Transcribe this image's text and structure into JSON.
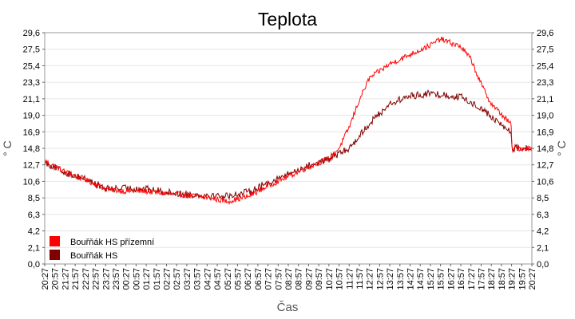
{
  "chart_data": {
    "type": "line",
    "title": "Teplota",
    "xlabel": "Čas",
    "ylabel": "° C",
    "ylim": [
      0,
      29.6
    ],
    "y_ticks": [
      "0,0",
      "2,1",
      "4,2",
      "6,3",
      "8,5",
      "10,6",
      "12,7",
      "14,8",
      "16,9",
      "19,0",
      "21,1",
      "23,3",
      "25,4",
      "27,5",
      "29,6"
    ],
    "x_ticks": [
      "20:27",
      "20:57",
      "21:27",
      "21:57",
      "22:27",
      "22:57",
      "23:27",
      "23:57",
      "00:27",
      "00:57",
      "01:27",
      "01:57",
      "02:27",
      "02:57",
      "03:27",
      "03:57",
      "04:27",
      "04:57",
      "05:27",
      "05:57",
      "06:27",
      "06:57",
      "07:27",
      "07:57",
      "08:27",
      "08:57",
      "09:27",
      "09:57",
      "10:27",
      "10:57",
      "11:27",
      "11:57",
      "12:27",
      "12:57",
      "13:27",
      "13:57",
      "14:27",
      "14:57",
      "15:27",
      "15:57",
      "16:27",
      "16:57",
      "17:27",
      "17:57",
      "18:27",
      "18:57",
      "19:27",
      "19:57",
      "20:27"
    ],
    "grid": true,
    "legend_position": "bottom-left",
    "series": [
      {
        "name": "Bouřňák HS přízemní",
        "color": "#ff0000",
        "x": [
          "20:27",
          "21:27",
          "22:27",
          "23:27",
          "00:27",
          "01:27",
          "02:27",
          "03:27",
          "04:27",
          "05:27",
          "06:27",
          "07:27",
          "08:27",
          "09:27",
          "10:27",
          "10:57",
          "11:27",
          "11:57",
          "12:27",
          "13:27",
          "14:27",
          "15:27",
          "15:57",
          "16:27",
          "16:57",
          "17:27",
          "17:57",
          "18:27",
          "19:27",
          "20:27"
        ],
        "values": [
          13.2,
          11.8,
          10.8,
          9.6,
          9.3,
          9.3,
          9.0,
          8.8,
          8.5,
          8.0,
          8.6,
          10.0,
          11.2,
          12.4,
          13.5,
          14.8,
          17.5,
          21.0,
          23.8,
          25.6,
          26.8,
          28.0,
          28.8,
          28.3,
          27.8,
          26.2,
          23.0,
          20.5,
          17.8,
          14.8
        ]
      },
      {
        "name": "Bouřňák HS",
        "color": "#800000",
        "x": [
          "20:27",
          "21:27",
          "22:27",
          "23:27",
          "00:27",
          "01:27",
          "02:27",
          "03:27",
          "04:27",
          "05:27",
          "06:27",
          "07:27",
          "08:27",
          "09:27",
          "10:27",
          "11:27",
          "12:27",
          "13:27",
          "14:27",
          "15:27",
          "15:57",
          "16:27",
          "16:57",
          "17:27",
          "17:57",
          "18:27",
          "19:27",
          "20:27"
        ],
        "values": [
          13.0,
          11.7,
          10.9,
          9.6,
          9.7,
          9.6,
          9.2,
          8.9,
          8.8,
          8.7,
          9.2,
          10.4,
          11.5,
          12.6,
          13.4,
          14.8,
          18.0,
          20.5,
          21.5,
          21.8,
          21.7,
          21.5,
          21.4,
          20.6,
          20.0,
          18.8,
          16.8,
          14.8
        ]
      }
    ]
  }
}
